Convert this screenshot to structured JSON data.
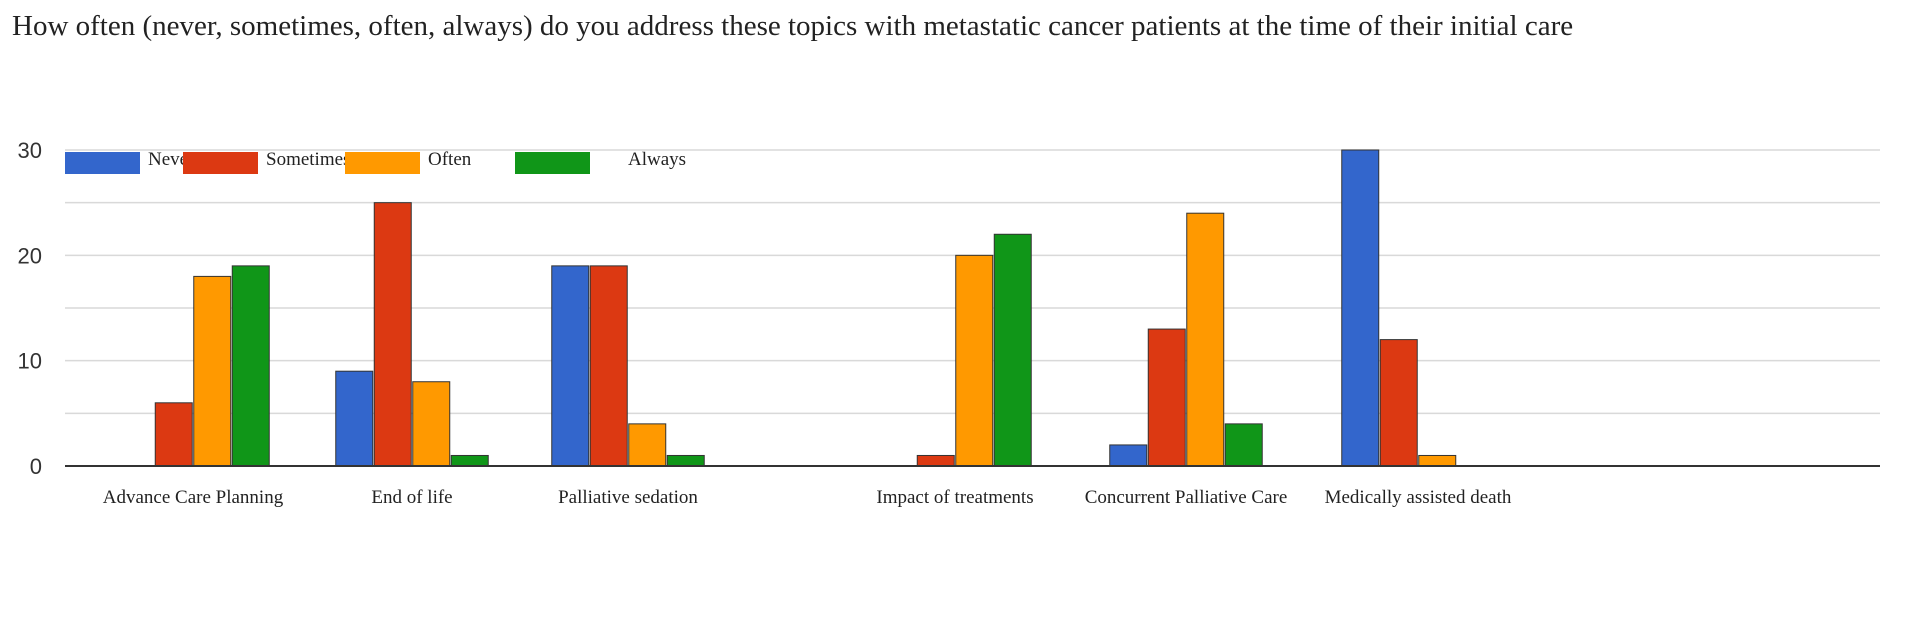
{
  "chart_data": {
    "type": "bar",
    "title": "How often (never, sometimes, often, always) do you address these topics with metastatic cancer patients at the time of their initial care",
    "xlabel": "",
    "ylabel": "",
    "ylim": [
      0,
      30
    ],
    "yticks": [
      0,
      10,
      20,
      30
    ],
    "grid": true,
    "legend_position": "top-left",
    "categories": [
      "Advance Care Planning",
      "End of life",
      "Palliative sedation",
      "Impact of treatments",
      "Concurrent Palliative Care",
      "Medically assisted death"
    ],
    "series": [
      {
        "name": "Never",
        "color": "#3366cc",
        "values": [
          0,
          9,
          19,
          0,
          2,
          30
        ]
      },
      {
        "name": "Sometimes",
        "color": "#dc3912",
        "values": [
          6,
          25,
          19,
          1,
          13,
          12
        ]
      },
      {
        "name": "Often",
        "color": "#ff9900",
        "values": [
          18,
          8,
          4,
          20,
          24,
          1
        ]
      },
      {
        "name": "Always",
        "color": "#109618",
        "values": [
          19,
          1,
          1,
          22,
          4,
          0
        ]
      }
    ]
  }
}
